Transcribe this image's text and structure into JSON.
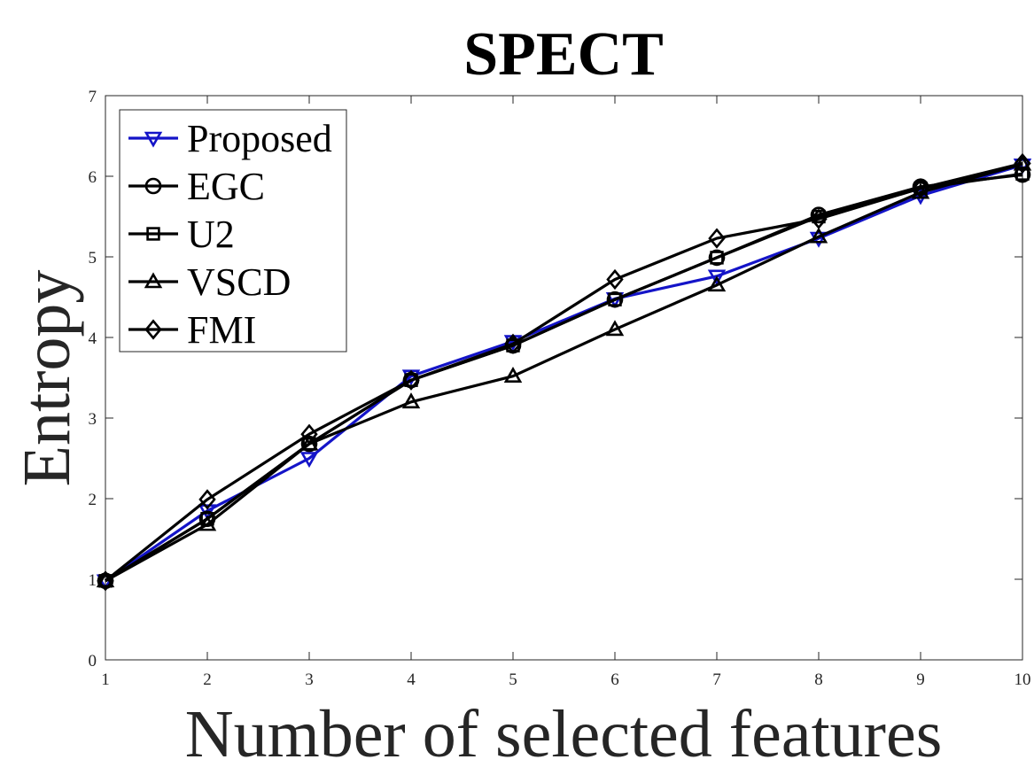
{
  "chart_data": {
    "type": "line",
    "title": "SPECT",
    "xlabel": "Number of selected features",
    "ylabel": "Entropy",
    "x": [
      1,
      2,
      3,
      4,
      5,
      6,
      7,
      8,
      9,
      10
    ],
    "xlim": [
      1,
      10
    ],
    "ylim": [
      0,
      7
    ],
    "xticks": [
      "1",
      "2",
      "3",
      "4",
      "5",
      "6",
      "7",
      "8",
      "9",
      "10"
    ],
    "yticks": [
      "0",
      "1",
      "2",
      "3",
      "4",
      "5",
      "6",
      "7"
    ],
    "grid": false,
    "legend_position": "top-left",
    "series": [
      {
        "name": "Proposed",
        "marker": "triangle-down",
        "color": "#1414c8",
        "values": [
          0.98,
          1.85,
          2.5,
          3.52,
          3.95,
          4.48,
          4.76,
          5.23,
          5.76,
          6.14
        ]
      },
      {
        "name": "EGC",
        "marker": "circle",
        "color": "#000000",
        "values": [
          0.98,
          1.75,
          2.68,
          3.47,
          3.9,
          4.47,
          4.99,
          5.52,
          5.87,
          6.02
        ]
      },
      {
        "name": "U2",
        "marker": "square",
        "color": "#000000",
        "values": [
          0.98,
          1.75,
          2.68,
          3.47,
          3.9,
          4.47,
          4.99,
          5.5,
          5.85,
          6.03
        ]
      },
      {
        "name": "VSCD",
        "marker": "triangle-up",
        "color": "#000000",
        "values": [
          0.98,
          1.68,
          2.68,
          3.2,
          3.52,
          4.1,
          4.65,
          5.25,
          5.8,
          6.15
        ]
      },
      {
        "name": "FMI",
        "marker": "diamond",
        "color": "#000000",
        "values": [
          0.98,
          1.99,
          2.8,
          3.47,
          3.92,
          4.72,
          5.23,
          5.47,
          5.85,
          6.16
        ]
      }
    ]
  }
}
